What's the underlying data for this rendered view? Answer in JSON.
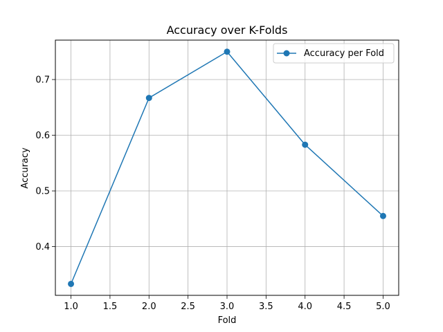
{
  "chart_data": {
    "type": "line",
    "title": "Accuracy over K-Folds",
    "xlabel": "Fold",
    "ylabel": "Accuracy",
    "xlim": [
      0.8,
      5.2
    ],
    "ylim": [
      0.3125,
      0.7708
    ],
    "xticks": [
      1.0,
      1.5,
      2.0,
      2.5,
      3.0,
      3.5,
      4.0,
      4.5,
      5.0
    ],
    "xtick_labels": [
      "1.0",
      "1.5",
      "2.0",
      "2.5",
      "3.0",
      "3.5",
      "4.0",
      "4.5",
      "5.0"
    ],
    "yticks": [
      0.4,
      0.5,
      0.6,
      0.7
    ],
    "ytick_labels": [
      "0.4",
      "0.5",
      "0.6",
      "0.7"
    ],
    "grid": true,
    "legend_position": "top-right",
    "series": [
      {
        "name": "Accuracy per Fold",
        "color": "#1f77b4",
        "marker": "circle",
        "x": [
          1,
          2,
          3,
          4,
          5
        ],
        "y": [
          0.333,
          0.667,
          0.75,
          0.583,
          0.455
        ]
      }
    ]
  }
}
